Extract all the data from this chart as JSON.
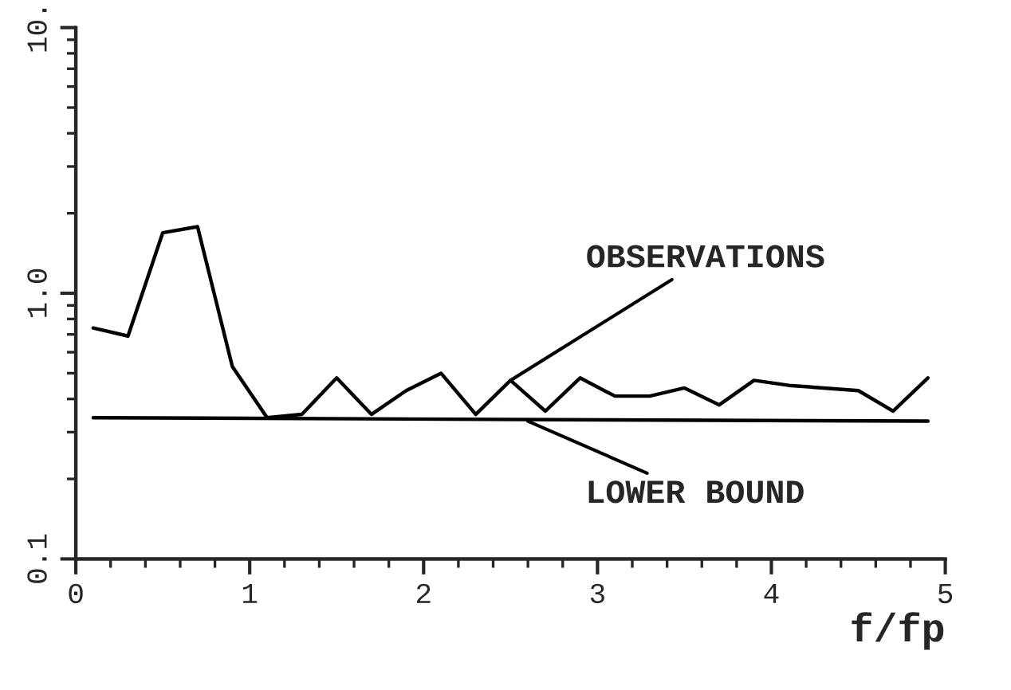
{
  "chart_data": {
    "type": "line",
    "xlabel": "f/fp",
    "log": "y",
    "xlim": [
      0,
      5
    ],
    "xticks": [
      0,
      1,
      2,
      3,
      4,
      5
    ],
    "ylim": [
      0.1,
      10
    ],
    "yticks": [
      {
        "value": 0.1,
        "label": "0.1"
      },
      {
        "value": 1,
        "label": "1.0"
      },
      {
        "value": 10,
        "label": "10."
      }
    ],
    "series": [
      {
        "color": "#000000",
        "x": [
          0.1,
          0.3,
          0.5,
          0.7,
          0.9,
          1.1,
          1.3,
          1.5,
          1.7,
          1.9,
          2.1,
          2.3,
          2.5,
          2.7,
          2.9,
          3.1,
          3.3,
          3.5,
          3.7,
          3.9,
          4.1,
          4.3,
          4.5,
          4.7,
          4.9
        ],
        "values": [
          0.74,
          0.69,
          1.69,
          1.78,
          0.53,
          0.34,
          0.35,
          0.48,
          0.35,
          0.43,
          0.5,
          0.35,
          0.47,
          0.36,
          0.48,
          0.41,
          0.41,
          0.44,
          0.38,
          0.47,
          0.45,
          0.44,
          0.43,
          0.36,
          0.48
        ]
      },
      {
        "color": "#000000",
        "x": [
          0.1,
          4.9
        ],
        "values": [
          0.34,
          0.33
        ]
      }
    ],
    "annotations": [
      {
        "text": "OBSERVATIONS",
        "x": 2.5,
        "y": 0.47
      },
      {
        "text": "LOWER BOUND",
        "x": 2.6,
        "y": 0.33
      }
    ],
    "marker": "none",
    "line_style": "solid"
  }
}
